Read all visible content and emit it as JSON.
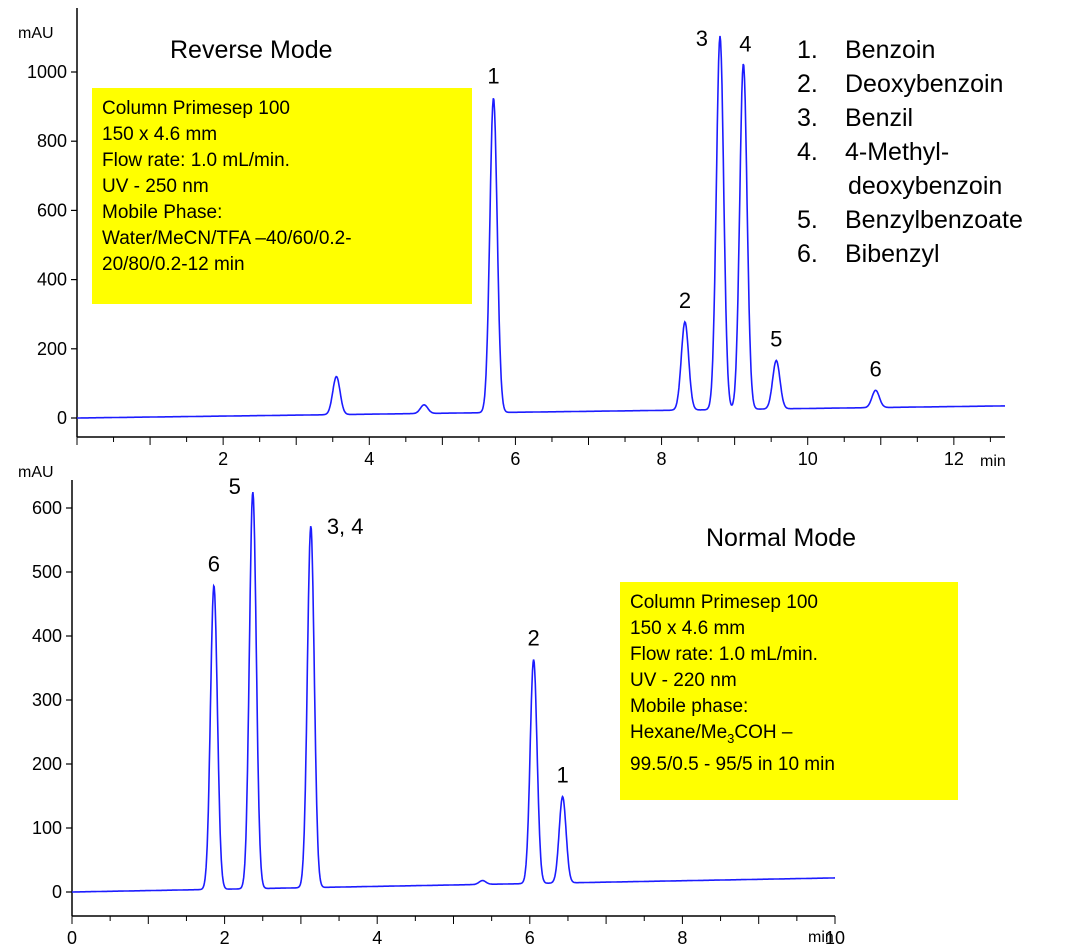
{
  "colors": {
    "trace": "#1c1cff",
    "info_box": "#ffff00",
    "axis": "#000000"
  },
  "chart_data": [
    {
      "type": "line",
      "title": "Reverse Mode",
      "xlabel": "min",
      "ylabel": "mAU",
      "xlim": [
        0,
        12.7
      ],
      "ylim": [
        -30,
        1080
      ],
      "x_ticks": [
        2,
        4,
        6,
        8,
        10,
        12
      ],
      "y_ticks": [
        0,
        200,
        400,
        600,
        800,
        1000
      ],
      "grid": false,
      "baseline": {
        "start": 0,
        "end": 35
      },
      "peaks": [
        {
          "label": "",
          "rt": 3.55,
          "height": 110
        },
        {
          "label": "",
          "rt": 4.75,
          "height": 25
        },
        {
          "label": "1",
          "rt": 5.7,
          "height": 910
        },
        {
          "label": "2",
          "rt": 8.32,
          "height": 255
        },
        {
          "label": "3",
          "rt": 8.8,
          "height": 1080
        },
        {
          "label": "4",
          "rt": 9.12,
          "height": 1000
        },
        {
          "label": "5",
          "rt": 9.57,
          "height": 140
        },
        {
          "label": "6",
          "rt": 10.93,
          "height": 50
        }
      ],
      "info_lines": [
        "Column Primesep 100",
        "150 x 4.6 mm",
        "Flow rate: 1.0 mL/min.",
        "UV - 250 nm",
        "Mobile Phase:",
        "Water/MeCN/TFA –40/60/0.2-",
        "20/80/0.2-12 min"
      ],
      "legend": [
        {
          "num": "1.",
          "name": "Benzoin"
        },
        {
          "num": "2.",
          "name": "Deoxybenzoin"
        },
        {
          "num": "3.",
          "name": "Benzil"
        },
        {
          "num": "4.",
          "name": "4-Methyl-"
        },
        {
          "num": "",
          "name": "deoxybenzoin"
        },
        {
          "num": "5.",
          "name": "Benzylbenzoate"
        },
        {
          "num": "6.",
          "name": "Bibenzyl"
        }
      ]
    },
    {
      "type": "line",
      "title": "Normal Mode",
      "xlabel": "min",
      "ylabel": "mAU",
      "xlim": [
        0,
        10
      ],
      "ylim": [
        -30,
        630
      ],
      "x_ticks": [
        0,
        2,
        4,
        6,
        8,
        10
      ],
      "y_ticks": [
        0,
        100,
        200,
        300,
        400,
        500,
        600
      ],
      "grid": false,
      "baseline": {
        "start": 0,
        "end": 22
      },
      "peaks": [
        {
          "label": "6",
          "rt": 1.86,
          "height": 475
        },
        {
          "label": "5",
          "rt": 2.37,
          "height": 620
        },
        {
          "label": "3, 4",
          "rt": 3.13,
          "height": 565
        },
        {
          "label": "",
          "rt": 5.38,
          "height": 6
        },
        {
          "label": "2",
          "rt": 6.05,
          "height": 350
        },
        {
          "label": "1",
          "rt": 6.43,
          "height": 135
        }
      ],
      "info_lines": [
        "Column  Primesep 100",
        "150 x 4.6 mm",
        "Flow rate: 1.0 mL/min.",
        " UV - 220 nm",
        "Mobile phase:",
        "Hexane/Me3COH –",
        "99.5/0.5 - 95/5 in 10 min"
      ]
    }
  ]
}
